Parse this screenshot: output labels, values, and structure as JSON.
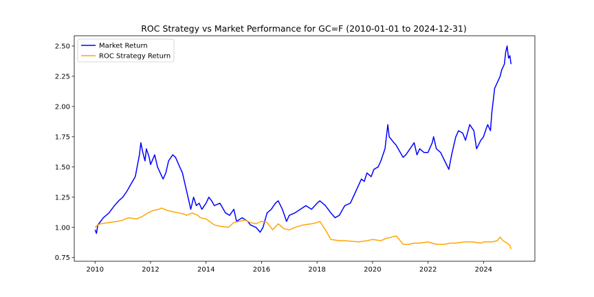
{
  "chart_data": {
    "type": "line",
    "title": "ROC Strategy vs Market Performance for GC=F (2010-01-01 to 2024-12-31)",
    "xlabel": "",
    "ylabel": "",
    "xlim": [
      2009.25,
      2025.85
    ],
    "ylim": [
      0.72,
      2.585
    ],
    "xticks": [
      2010,
      2012,
      2014,
      2016,
      2018,
      2020,
      2022,
      2024
    ],
    "yticks": [
      0.75,
      1.0,
      1.25,
      1.5,
      1.75,
      2.0,
      2.25,
      2.5
    ],
    "ytick_labels": [
      "0.75",
      "1.00",
      "1.25",
      "1.50",
      "1.75",
      "2.00",
      "2.25",
      "2.50"
    ],
    "grid": false,
    "legend_position": "upper-left",
    "series": [
      {
        "name": "Market Return",
        "color": "#0000ff",
        "x": [
          2010.0,
          2010.05,
          2010.1,
          2010.2,
          2010.3,
          2010.5,
          2010.7,
          2010.85,
          2011.0,
          2011.15,
          2011.3,
          2011.45,
          2011.6,
          2011.65,
          2011.72,
          2011.8,
          2011.85,
          2011.95,
          2012.0,
          2012.15,
          2012.25,
          2012.35,
          2012.45,
          2012.55,
          2012.65,
          2012.8,
          2012.9,
          2013.05,
          2013.15,
          2013.25,
          2013.35,
          2013.45,
          2013.55,
          2013.65,
          2013.75,
          2013.85,
          2014.0,
          2014.1,
          2014.2,
          2014.3,
          2014.5,
          2014.7,
          2014.85,
          2015.0,
          2015.1,
          2015.3,
          2015.5,
          2015.6,
          2015.8,
          2015.95,
          2016.05,
          2016.2,
          2016.35,
          2016.5,
          2016.6,
          2016.75,
          2016.9,
          2017.0,
          2017.2,
          2017.4,
          2017.6,
          2017.8,
          2018.0,
          2018.1,
          2018.3,
          2018.5,
          2018.65,
          2018.8,
          2019.0,
          2019.2,
          2019.4,
          2019.5,
          2019.6,
          2019.7,
          2019.8,
          2019.95,
          2020.05,
          2020.2,
          2020.3,
          2020.45,
          2020.55,
          2020.6,
          2020.7,
          2020.85,
          2021.0,
          2021.1,
          2021.2,
          2021.35,
          2021.5,
          2021.6,
          2021.7,
          2021.85,
          2022.0,
          2022.15,
          2022.2,
          2022.3,
          2022.45,
          2022.6,
          2022.75,
          2022.85,
          2023.0,
          2023.1,
          2023.25,
          2023.35,
          2023.5,
          2023.65,
          2023.75,
          2023.9,
          2024.0,
          2024.1,
          2024.15,
          2024.25,
          2024.3,
          2024.4,
          2024.5,
          2024.6,
          2024.65,
          2024.75,
          2024.8,
          2024.85,
          2024.9,
          2024.95,
          2024.99
        ],
        "y": [
          0.98,
          0.95,
          1.02,
          1.05,
          1.08,
          1.12,
          1.18,
          1.22,
          1.25,
          1.3,
          1.36,
          1.42,
          1.6,
          1.7,
          1.62,
          1.55,
          1.65,
          1.58,
          1.52,
          1.6,
          1.5,
          1.45,
          1.4,
          1.45,
          1.55,
          1.6,
          1.58,
          1.5,
          1.45,
          1.35,
          1.25,
          1.15,
          1.25,
          1.18,
          1.2,
          1.15,
          1.2,
          1.25,
          1.22,
          1.18,
          1.2,
          1.12,
          1.1,
          1.15,
          1.05,
          1.08,
          1.05,
          1.02,
          1.0,
          0.96,
          1.0,
          1.12,
          1.15,
          1.2,
          1.22,
          1.15,
          1.05,
          1.1,
          1.12,
          1.15,
          1.18,
          1.15,
          1.2,
          1.22,
          1.18,
          1.12,
          1.08,
          1.1,
          1.18,
          1.2,
          1.3,
          1.35,
          1.4,
          1.38,
          1.45,
          1.42,
          1.48,
          1.5,
          1.55,
          1.65,
          1.85,
          1.75,
          1.72,
          1.68,
          1.62,
          1.58,
          1.6,
          1.65,
          1.7,
          1.6,
          1.65,
          1.62,
          1.62,
          1.7,
          1.75,
          1.65,
          1.62,
          1.55,
          1.48,
          1.6,
          1.75,
          1.8,
          1.78,
          1.72,
          1.85,
          1.8,
          1.65,
          1.72,
          1.75,
          1.82,
          1.85,
          1.8,
          1.95,
          2.15,
          2.2,
          2.25,
          2.3,
          2.35,
          2.45,
          2.5,
          2.4,
          2.42,
          2.35
        ]
      },
      {
        "name": "ROC Strategy Return",
        "color": "#ffa500",
        "x": [
          2010.0,
          2010.1,
          2010.2,
          2010.5,
          2010.8,
          2011.0,
          2011.2,
          2011.5,
          2011.7,
          2011.9,
          2012.1,
          2012.3,
          2012.4,
          2012.6,
          2012.8,
          2013.0,
          2013.2,
          2013.3,
          2013.5,
          2013.7,
          2013.8,
          2014.0,
          2014.3,
          2014.5,
          2014.8,
          2015.0,
          2015.2,
          2015.4,
          2015.6,
          2015.8,
          2016.0,
          2016.2,
          2016.4,
          2016.6,
          2016.8,
          2017.0,
          2017.2,
          2017.5,
          2017.8,
          2018.0,
          2018.1,
          2018.3,
          2018.5,
          2018.8,
          2019.0,
          2019.5,
          2019.8,
          2020.0,
          2020.3,
          2020.5,
          2020.7,
          2020.85,
          2021.0,
          2021.1,
          2021.3,
          2021.5,
          2021.7,
          2022.0,
          2022.3,
          2022.6,
          2022.8,
          2023.0,
          2023.3,
          2023.6,
          2023.9,
          2024.0,
          2024.3,
          2024.5,
          2024.6,
          2024.7,
          2024.85,
          2024.95,
          2024.99
        ],
        "y": [
          1.0,
          1.02,
          1.03,
          1.04,
          1.05,
          1.06,
          1.08,
          1.07,
          1.09,
          1.12,
          1.14,
          1.15,
          1.16,
          1.14,
          1.13,
          1.12,
          1.11,
          1.1,
          1.12,
          1.1,
          1.08,
          1.07,
          1.02,
          1.01,
          1.0,
          1.04,
          1.05,
          1.06,
          1.04,
          1.03,
          1.05,
          1.04,
          0.98,
          1.03,
          0.99,
          0.98,
          1.0,
          1.02,
          1.03,
          1.04,
          1.05,
          0.98,
          0.9,
          0.89,
          0.89,
          0.88,
          0.89,
          0.9,
          0.89,
          0.91,
          0.92,
          0.93,
          0.89,
          0.86,
          0.86,
          0.87,
          0.87,
          0.88,
          0.86,
          0.86,
          0.87,
          0.87,
          0.88,
          0.88,
          0.87,
          0.88,
          0.88,
          0.89,
          0.92,
          0.89,
          0.87,
          0.85,
          0.82
        ]
      }
    ]
  }
}
